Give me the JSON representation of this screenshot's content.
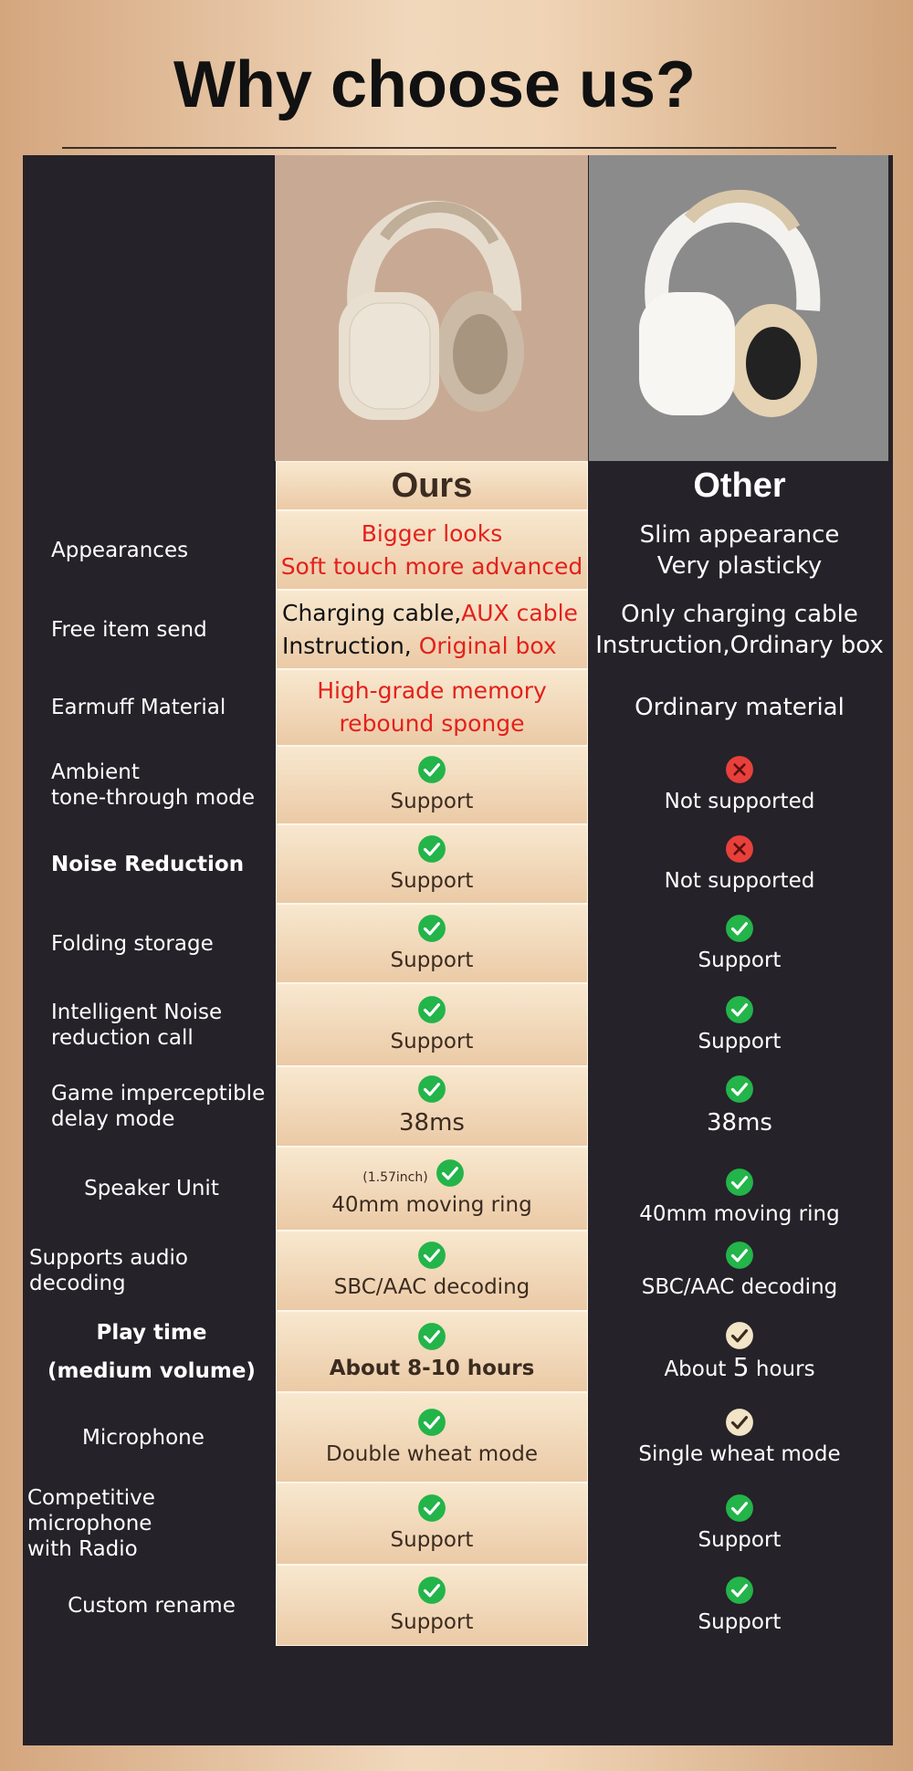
{
  "header": {
    "title": "Why choose us?"
  },
  "table": {
    "columns": [
      "Ours",
      "Other"
    ],
    "rows": [
      {
        "feature": [
          "Appearances"
        ],
        "ours": [
          "Bigger looks",
          "Soft touch more advanced"
        ],
        "other": [
          "Slim appearance",
          "Very plasticky"
        ]
      },
      {
        "feature": [
          "Free item send"
        ],
        "ours": [
          "Charging cable,",
          "AUX cable",
          "Instruction, ",
          "Original box"
        ],
        "other": [
          "Only charging cable",
          "Instruction,Ordinary box"
        ]
      },
      {
        "feature": [
          "Earmuff Material"
        ],
        "ours": [
          "High-grade memory",
          "rebound sponge"
        ],
        "other": [
          "Ordinary material"
        ]
      },
      {
        "feature": [
          "Ambient",
          "tone-through mode"
        ],
        "ours": [
          "Support"
        ],
        "other": [
          "Not supported"
        ]
      },
      {
        "feature": [
          "Noise Reduction"
        ],
        "ours": [
          "Support"
        ],
        "other": [
          "Not supported"
        ]
      },
      {
        "feature": [
          "Folding storage"
        ],
        "ours": [
          "Support"
        ],
        "other": [
          "Support"
        ]
      },
      {
        "feature": [
          "Intelligent Noise",
          "reduction call"
        ],
        "ours": [
          "Support"
        ],
        "other": [
          "Support"
        ]
      },
      {
        "feature": [
          "Game imperceptible",
          "delay mode"
        ],
        "ours": [
          "38ms"
        ],
        "other": [
          "38ms"
        ]
      },
      {
        "feature": [
          "Speaker Unit"
        ],
        "ours": [
          "(1.57inch)",
          "40mm moving ring"
        ],
        "other": [
          "40mm moving ring"
        ]
      },
      {
        "feature": [
          "Supports audio decoding"
        ],
        "ours": [
          "SBC/AAC decoding"
        ],
        "other": [
          "SBC/AAC decoding"
        ]
      },
      {
        "feature": [
          "Play time",
          "(medium volume)"
        ],
        "ours": [
          "About 8-10 hours"
        ],
        "other": [
          "About ",
          "5",
          " hours"
        ]
      },
      {
        "feature": [
          "Microphone"
        ],
        "ours": [
          "Double wheat mode"
        ],
        "other": [
          "Single wheat mode"
        ]
      },
      {
        "feature": [
          "Competitive microphone",
          "with Radio"
        ],
        "ours": [
          "Support"
        ],
        "other": [
          "Support"
        ]
      },
      {
        "feature": [
          "Custom rename"
        ],
        "ours": [
          "Support"
        ],
        "other": [
          "Support"
        ]
      }
    ]
  }
}
